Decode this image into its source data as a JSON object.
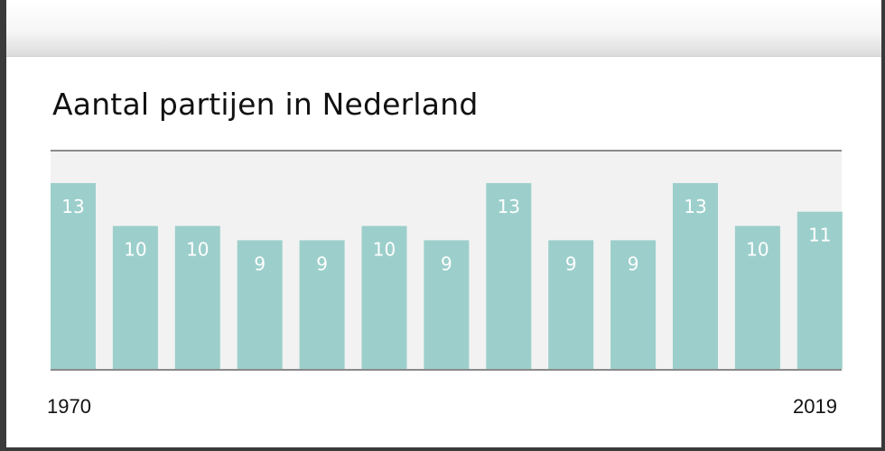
{
  "title": "Aantal partijen in Nederland",
  "colors": {
    "bar": "#9ccfcb",
    "band": "#f2f2f2",
    "axis": "#8a8a8a",
    "label": "#ffffff"
  },
  "chart_data": {
    "type": "bar",
    "title": "Aantal partijen in Nederland",
    "x_tick_labels": [
      "1970",
      "2019"
    ],
    "values": [
      13,
      10,
      10,
      9,
      9,
      10,
      9,
      13,
      9,
      9,
      13,
      10,
      11
    ],
    "ylim": [
      0,
      13
    ],
    "xlabel": "",
    "ylabel": "",
    "grid": false,
    "legend": "none"
  }
}
